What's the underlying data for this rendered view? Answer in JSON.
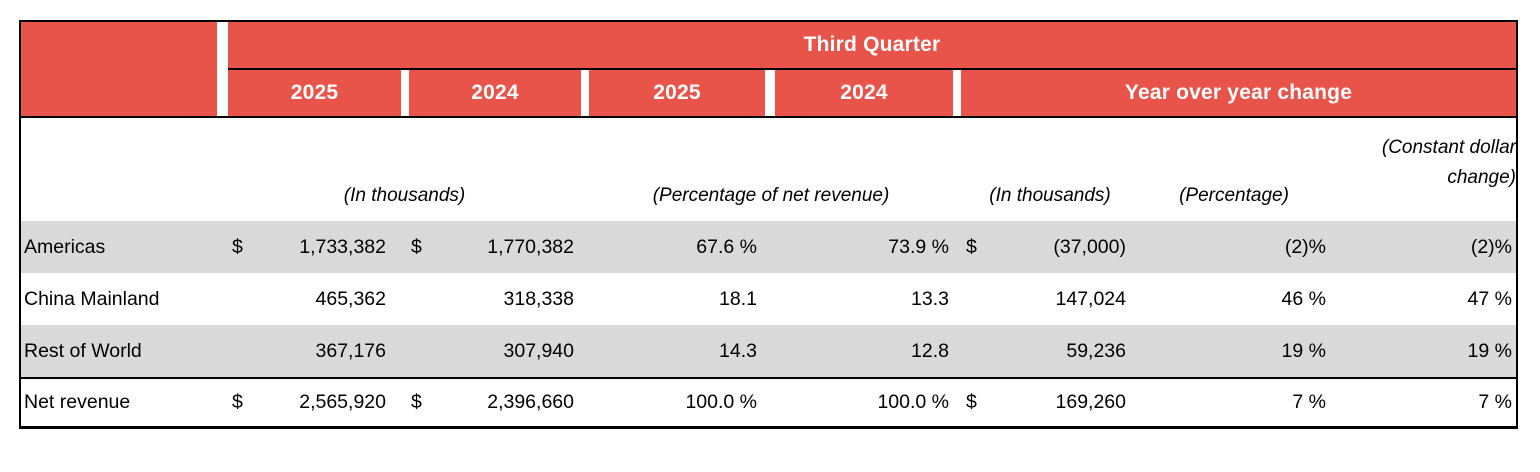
{
  "colors": {
    "header_red": "#E8544A",
    "stripe_gray": "#D9D9D9",
    "border": "#000000"
  },
  "table": {
    "header": {
      "top_span": "Third Quarter",
      "years": [
        "2025",
        "2024",
        "2025",
        "2024"
      ],
      "yoy_span": "Year over year change"
    },
    "units": {
      "in_thousands_quarter": "(In thousands)",
      "pct_net_revenue": "(Percentage of net revenue)",
      "in_thousands_yoy": "(In thousands)",
      "percentage": "(Percentage)",
      "constant_dollar_line1": "(Constant dollar",
      "constant_dollar_line2": "change)"
    },
    "rows": [
      {
        "label": "Americas",
        "cur1": "$",
        "v1": "1,733,382",
        "cur2": "$",
        "v2": "1,770,382",
        "p1": "67.6 %",
        "p2": "73.9 %",
        "cur3": "$",
        "v3": "(37,000)",
        "pct_change": "(2)%",
        "const_change": "(2)%"
      },
      {
        "label": "China Mainland",
        "cur1": "",
        "v1": "465,362",
        "cur2": "",
        "v2": "318,338",
        "p1": "18.1",
        "p2": "13.3",
        "cur3": "",
        "v3": "147,024",
        "pct_change": "46 %",
        "const_change": "47 %"
      },
      {
        "label": "Rest of World",
        "cur1": "",
        "v1": "367,176",
        "cur2": "",
        "v2": "307,940",
        "p1": "14.3",
        "p2": "12.8",
        "cur3": "",
        "v3": "59,236",
        "pct_change": "19 %",
        "const_change": "19 %"
      },
      {
        "label": "Net revenue",
        "cur1": "$",
        "v1": "2,565,920",
        "cur2": "$",
        "v2": "2,396,660",
        "p1": "100.0 %",
        "p2": "100.0 %",
        "cur3": "$",
        "v3": "169,260",
        "pct_change": "7 %",
        "const_change": "7 %"
      }
    ]
  }
}
